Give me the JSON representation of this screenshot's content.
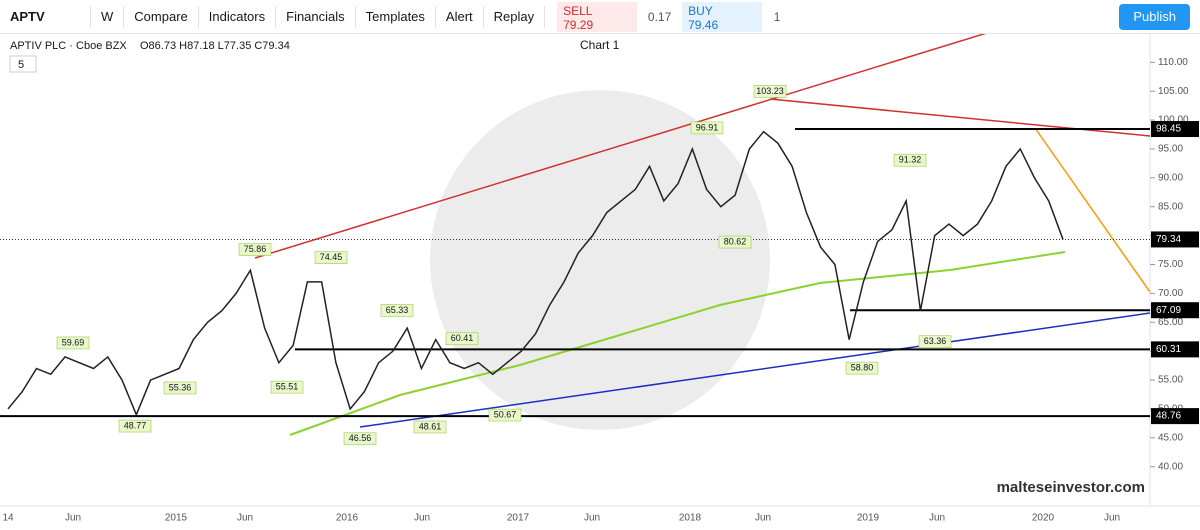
{
  "toolbar": {
    "symbol": "APTV",
    "interval": "W",
    "buttons": [
      "Compare",
      "Indicators",
      "Financials",
      "Templates",
      "Alert",
      "Replay"
    ],
    "sell_label": "SELL",
    "sell_price": "79.29",
    "spread": "0.17",
    "buy_label": "BUY",
    "buy_price": "79.46",
    "quantity": "1",
    "publish": "Publish"
  },
  "header": {
    "name": "APTIV PLC · Cboe BZX",
    "ohlc": "O86.73 H87.18 L77.35 C79.34",
    "chart_title": "Chart 1",
    "collapse": "5"
  },
  "watermark": "malteseinvestor.com",
  "chart_data": {
    "type": "line",
    "color": "#222222",
    "values": [
      50,
      53,
      57,
      56,
      59,
      58,
      57,
      59,
      55,
      49,
      55,
      56,
      57,
      62,
      65,
      67,
      70,
      74,
      64,
      58,
      61,
      72,
      72,
      58,
      50,
      53,
      58,
      60,
      64,
      57,
      62,
      58,
      57,
      58,
      56,
      58,
      60,
      63,
      68,
      72,
      77,
      80,
      84,
      86,
      88,
      92,
      86,
      89,
      95,
      88,
      85,
      87,
      95,
      98,
      96,
      92,
      84,
      78,
      75,
      62,
      72,
      79,
      81,
      86,
      67,
      80,
      82,
      80,
      82,
      86,
      92,
      95,
      90,
      86,
      79.34
    ],
    "ylim": [
      33.2,
      114.9
    ],
    "yticks": [
      {
        "value": 40,
        "label": "40.00"
      },
      {
        "value": 45,
        "label": "45.00"
      },
      {
        "value": 50,
        "label": "50.00"
      },
      {
        "value": 55,
        "label": "55.00"
      },
      {
        "value": 60,
        "label": "60.00"
      },
      {
        "value": 65,
        "label": "65.00"
      },
      {
        "value": 70,
        "label": "70.00"
      },
      {
        "value": 75,
        "label": "75.00"
      },
      {
        "value": 80,
        "label": "80.00"
      },
      {
        "value": 85,
        "label": "85.00"
      },
      {
        "value": 90,
        "label": "90.00"
      },
      {
        "value": 95,
        "label": "95.00"
      },
      {
        "value": 100,
        "label": "100.00"
      },
      {
        "value": 105,
        "label": "105.00"
      },
      {
        "value": 110,
        "label": "110.00"
      }
    ],
    "time_labels": [
      "14",
      "Jun",
      "2015",
      "Jun",
      "2016",
      "Jun",
      "2017",
      "Jun",
      "2018",
      "Jun",
      "2019",
      "Jun",
      "2020",
      "Jun"
    ],
    "levels": [
      98.45,
      67.09,
      60.31,
      48.76
    ],
    "last_price": 79.34,
    "annotations": [
      103.23,
      96.91,
      80.62,
      91.32,
      75.86,
      74.45,
      65.33,
      60.41,
      59.69,
      55.36,
      55.51,
      48.77,
      46.56,
      48.61,
      50.67,
      {
        "value": 58.8,
        "label": "58.80"
      },
      63.36
    ]
  }
}
